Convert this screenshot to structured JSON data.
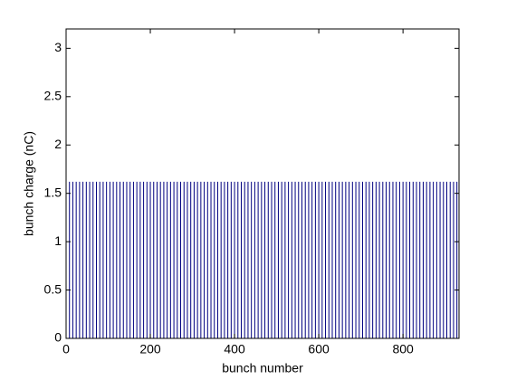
{
  "chart_data": {
    "type": "stem",
    "xlabel": "bunch number",
    "ylabel": "bunch charge (nC)",
    "color": "#000080",
    "x": [
      0,
      8,
      16,
      24,
      32,
      40,
      48,
      56,
      64,
      72,
      80,
      88,
      96,
      104,
      112,
      120,
      128,
      136,
      144,
      152,
      160,
      168,
      176,
      184,
      192,
      200,
      208,
      216,
      224,
      232,
      240,
      248,
      256,
      264,
      272,
      280,
      288,
      296,
      304,
      312,
      320,
      328,
      336,
      344,
      352,
      360,
      368,
      376,
      384,
      392,
      400,
      408,
      416,
      424,
      432,
      440,
      448,
      456,
      464,
      472,
      480,
      488,
      496,
      504,
      512,
      520,
      528,
      536,
      544,
      552,
      560,
      568,
      576,
      584,
      592,
      600,
      608,
      616,
      624,
      632,
      640,
      648,
      656,
      664,
      672,
      680,
      688,
      696,
      704,
      712,
      720,
      728,
      736,
      744,
      752,
      760,
      768,
      776,
      784,
      792,
      800,
      808,
      816,
      824,
      832,
      840,
      848,
      856,
      864,
      872,
      880,
      888,
      896,
      904,
      912,
      920,
      928
    ],
    "values": [
      1.62,
      1.62,
      1.62,
      1.62,
      1.62,
      1.62,
      1.62,
      1.62,
      1.62,
      1.62,
      1.62,
      1.62,
      1.62,
      1.62,
      1.62,
      1.62,
      1.62,
      1.62,
      1.62,
      1.62,
      1.62,
      1.62,
      1.62,
      1.62,
      1.62,
      1.62,
      1.62,
      1.62,
      1.62,
      1.62,
      1.62,
      1.62,
      1.62,
      1.62,
      1.62,
      1.62,
      1.62,
      1.62,
      1.62,
      1.62,
      1.62,
      1.62,
      1.62,
      1.62,
      1.62,
      1.62,
      1.62,
      1.62,
      1.62,
      1.62,
      1.62,
      1.62,
      1.62,
      1.62,
      1.62,
      1.62,
      1.62,
      1.62,
      1.62,
      1.62,
      1.62,
      1.62,
      1.62,
      1.62,
      1.62,
      1.62,
      1.62,
      1.62,
      1.62,
      1.62,
      1.62,
      1.62,
      1.62,
      1.62,
      1.62,
      1.62,
      1.62,
      1.62,
      1.62,
      1.62,
      1.62,
      1.62,
      1.62,
      1.62,
      1.62,
      1.62,
      1.62,
      1.62,
      1.62,
      1.62,
      1.62,
      1.62,
      1.62,
      1.62,
      1.62,
      1.62,
      1.62,
      1.62,
      1.62,
      1.62,
      1.62,
      1.62,
      1.62,
      1.62,
      1.62,
      1.62,
      1.62,
      1.62,
      1.62,
      1.62,
      1.62,
      1.62,
      1.62,
      1.62,
      1.62,
      1.62,
      1.62
    ],
    "xlim": [
      0,
      933
    ],
    "xticks": [
      0,
      200,
      400,
      600,
      800
    ],
    "ylim": [
      0,
      3.2
    ],
    "yticks": [
      0,
      0.5,
      1,
      1.5,
      2,
      2.5,
      3
    ]
  }
}
